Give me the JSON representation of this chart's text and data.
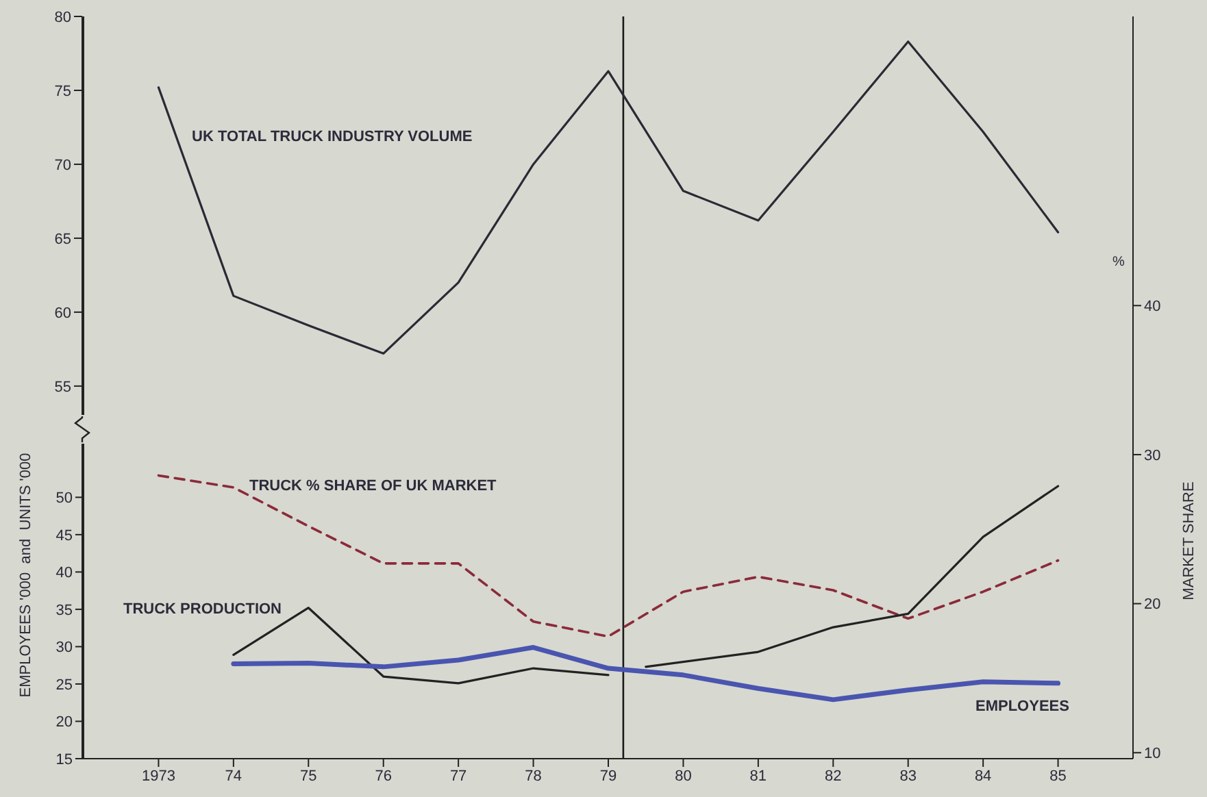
{
  "chart_data": {
    "type": "line",
    "ylabel": "EMPLOYEES '000  and  UNITS '000",
    "y2label": "MARKET SHARE",
    "annotations": [
      "%"
    ],
    "xlim": [
      1972,
      1986
    ],
    "xticks": [
      {
        "value": 1973,
        "label": "1973"
      },
      {
        "value": 1974,
        "label": "74"
      },
      {
        "value": 1975,
        "label": "75"
      },
      {
        "value": 1976,
        "label": "76"
      },
      {
        "value": 1977,
        "label": "77"
      },
      {
        "value": 1978,
        "label": "78"
      },
      {
        "value": 1979,
        "label": "79"
      },
      {
        "value": 1980,
        "label": "80"
      },
      {
        "value": 1981,
        "label": "81"
      },
      {
        "value": 1982,
        "label": "82"
      },
      {
        "value": 1983,
        "label": "83"
      },
      {
        "value": 1984,
        "label": "84"
      },
      {
        "value": 1985,
        "label": "85"
      }
    ],
    "ylim": [
      15,
      114.4
    ],
    "yticks": [
      15,
      20,
      25,
      30,
      35,
      40,
      45,
      50
    ],
    "y3lim": [
      29.8,
      80
    ],
    "y3ticks": [
      55,
      60,
      65,
      70,
      75,
      80
    ],
    "y2lim": [
      9.6,
      59.4
    ],
    "y2ticks": [
      10,
      20,
      30,
      40
    ],
    "ref_lines": [
      {
        "axis": "x",
        "value": 1979.2,
        "color": "#1a1a1a"
      }
    ],
    "series": [
      {
        "name": "UK TOTAL TRUCK INDUSTRY VOLUME",
        "color": "#2a2a35",
        "axis": "y3",
        "x": [
          1973,
          1974,
          1975,
          1976,
          1977,
          1978,
          1979,
          1980,
          1981,
          1982,
          1983,
          1984,
          1985
        ],
        "values": [
          75.2,
          61.1,
          59.1,
          57.2,
          62,
          70,
          76.3,
          68.2,
          66.2,
          72.2,
          78.3,
          72.2,
          65.4
        ]
      },
      {
        "name": "TRUCK % SHARE OF UK MARKET",
        "color": "#8b2a3a",
        "axis": "y2",
        "line_style": "dashed",
        "x": [
          1973,
          1974,
          1975,
          1976,
          1977,
          1978,
          1979,
          1980,
          1981,
          1982,
          1983,
          1984,
          1985
        ],
        "values": [
          28.6,
          27.8,
          25.2,
          22.7,
          22.7,
          18.8,
          17.8,
          20.8,
          21.8,
          20.9,
          19.0,
          20.8,
          22.9
        ]
      },
      {
        "name": "TRUCK PRODUCTION",
        "color": "#222222",
        "x": [
          1974,
          1975,
          1976,
          1977,
          1978,
          1979
        ],
        "values": [
          28.9,
          35.2,
          26.0,
          25.1,
          27.1,
          26.2
        ]
      },
      {
        "color": "#222222",
        "x": [
          1979.5,
          1981,
          1982,
          1983,
          1984,
          1985
        ],
        "values": [
          27.3,
          29.3,
          32.6,
          34.4,
          44.7,
          51.5
        ]
      },
      {
        "name": "EMPLOYEES",
        "color": "#4a55b0",
        "x": [
          1974,
          1975,
          1976,
          1977,
          1978,
          1979,
          1980,
          1981,
          1982,
          1983,
          1984,
          1985
        ],
        "values": [
          27.7,
          27.8,
          27.3,
          28.2,
          29.9,
          27.1,
          26.2,
          24.4,
          22.9,
          24.2,
          25.3,
          25.1
        ]
      }
    ]
  }
}
